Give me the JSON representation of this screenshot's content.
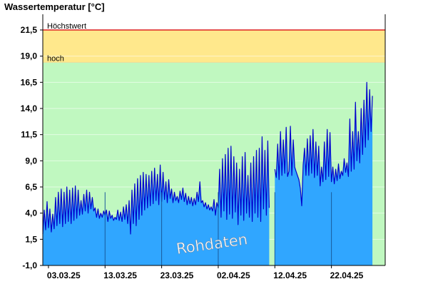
{
  "chart_data": {
    "type": "area",
    "title": "Wassertemperatur [°C]",
    "xlabel": "",
    "ylabel": "",
    "x_tick_labels": [
      "03.03.25",
      "13.03.25",
      "23.03.25",
      "02.04.25",
      "12.04.25",
      "22.04.25"
    ],
    "y_tick_labels": [
      "-1,0",
      "1,5",
      "4,0",
      "6,5",
      "9,0",
      "11,5",
      "14,0",
      "16,5",
      "19,0",
      "21,5"
    ],
    "y_ticks": [
      -1.0,
      1.5,
      4.0,
      6.5,
      9.0,
      11.5,
      14.0,
      16.5,
      19.0,
      21.5
    ],
    "ylim": [
      -1.0,
      23.0
    ],
    "x_range_days": [
      0,
      60.5
    ],
    "x_tick_days": [
      1,
      11,
      21,
      31,
      41,
      51
    ],
    "grid": true,
    "thresholds": [
      {
        "label": "Höchstwert",
        "value": 21.5,
        "color": "#dd2222"
      },
      {
        "label": "hoch",
        "value": 18.4,
        "color": "#e8e0a0"
      }
    ],
    "zones": {
      "above_max": "#ffffff",
      "between": "#ffe88c",
      "below_high": "#c0f8c0"
    },
    "colors": {
      "fill": "#30a6ff",
      "line": "#0000cc",
      "separator": "#1a5a9a",
      "axis": "#000000"
    },
    "watermark": "Rohdaten",
    "gap_days": [
      40.1,
      41.0
    ],
    "series": [
      {
        "values": [
          [
            0.0,
            2.0
          ],
          [
            0.25,
            4.3
          ],
          [
            0.5,
            2.4
          ],
          [
            0.75,
            5.1
          ],
          [
            1.0,
            2.6
          ],
          [
            1.25,
            4.4
          ],
          [
            1.5,
            2.2
          ],
          [
            1.75,
            3.9
          ],
          [
            2.0,
            2.5
          ],
          [
            2.25,
            5.5
          ],
          [
            2.5,
            2.8
          ],
          [
            2.75,
            6.0
          ],
          [
            3.0,
            3.0
          ],
          [
            3.25,
            6.3
          ],
          [
            3.5,
            2.7
          ],
          [
            3.75,
            6.0
          ],
          [
            4.0,
            3.0
          ],
          [
            4.25,
            6.5
          ],
          [
            4.5,
            3.2
          ],
          [
            4.75,
            6.2
          ],
          [
            5.0,
            3.0
          ],
          [
            5.25,
            6.4
          ],
          [
            5.5,
            3.3
          ],
          [
            5.75,
            6.6
          ],
          [
            6.0,
            3.5
          ],
          [
            6.25,
            6.2
          ],
          [
            6.5,
            3.8
          ],
          [
            6.75,
            5.2
          ],
          [
            7.0,
            3.9
          ],
          [
            7.25,
            5.8
          ],
          [
            7.5,
            4.2
          ],
          [
            7.75,
            6.2
          ],
          [
            8.0,
            4.0
          ],
          [
            8.25,
            6.0
          ],
          [
            8.5,
            4.4
          ],
          [
            8.75,
            5.5
          ],
          [
            9.0,
            4.2
          ],
          [
            9.25,
            4.5
          ],
          [
            9.5,
            3.6
          ],
          [
            9.75,
            4.4
          ],
          [
            10.0,
            3.5
          ],
          [
            10.25,
            4.0
          ],
          [
            10.5,
            3.6
          ],
          [
            10.75,
            4.2
          ],
          [
            11.0,
            3.8
          ],
          [
            11.25,
            4.3
          ],
          [
            11.5,
            3.2
          ],
          [
            11.75,
            4.2
          ],
          [
            12.0,
            3.5
          ],
          [
            12.25,
            3.8
          ],
          [
            12.5,
            3.3
          ],
          [
            12.75,
            3.6
          ],
          [
            13.0,
            3.4
          ],
          [
            13.25,
            4.3
          ],
          [
            13.5,
            3.3
          ],
          [
            13.75,
            4.1
          ],
          [
            14.0,
            3.2
          ],
          [
            14.25,
            4.6
          ],
          [
            14.5,
            3.4
          ],
          [
            14.75,
            4.8
          ],
          [
            15.0,
            3.0
          ],
          [
            15.25,
            5.2
          ],
          [
            15.5,
            2.0
          ],
          [
            15.75,
            6.2
          ],
          [
            16.0,
            3.0
          ],
          [
            16.25,
            6.8
          ],
          [
            16.5,
            2.8
          ],
          [
            16.75,
            7.3
          ],
          [
            17.0,
            3.4
          ],
          [
            17.25,
            7.6
          ],
          [
            17.5,
            3.8
          ],
          [
            17.75,
            7.9
          ],
          [
            18.0,
            4.3
          ],
          [
            18.25,
            7.7
          ],
          [
            18.5,
            4.5
          ],
          [
            18.75,
            7.6
          ],
          [
            19.0,
            4.7
          ],
          [
            19.25,
            8.0
          ],
          [
            19.5,
            4.9
          ],
          [
            19.75,
            8.3
          ],
          [
            20.0,
            5.2
          ],
          [
            20.25,
            7.7
          ],
          [
            20.5,
            4.8
          ],
          [
            20.75,
            8.6
          ],
          [
            21.0,
            5.1
          ],
          [
            21.25,
            7.9
          ],
          [
            21.5,
            5.3
          ],
          [
            21.75,
            7.0
          ],
          [
            22.0,
            5.0
          ],
          [
            22.25,
            7.2
          ],
          [
            22.5,
            5.4
          ],
          [
            22.75,
            6.3
          ],
          [
            23.0,
            5.0
          ],
          [
            23.25,
            6.0
          ],
          [
            23.5,
            5.2
          ],
          [
            23.75,
            5.6
          ],
          [
            24.0,
            5.0
          ],
          [
            24.25,
            6.1
          ],
          [
            24.5,
            5.3
          ],
          [
            24.75,
            6.4
          ],
          [
            25.0,
            5.1
          ],
          [
            25.25,
            5.9
          ],
          [
            25.5,
            4.8
          ],
          [
            25.75,
            5.6
          ],
          [
            26.0,
            4.9
          ],
          [
            26.25,
            5.5
          ],
          [
            26.5,
            4.7
          ],
          [
            26.75,
            5.4
          ],
          [
            27.0,
            4.8
          ],
          [
            27.25,
            6.0
          ],
          [
            27.5,
            5.1
          ],
          [
            27.75,
            7.0
          ],
          [
            28.0,
            5.0
          ],
          [
            28.25,
            5.2
          ],
          [
            28.5,
            4.6
          ],
          [
            28.75,
            5.0
          ],
          [
            29.0,
            4.4
          ],
          [
            29.25,
            4.8
          ],
          [
            29.5,
            4.3
          ],
          [
            29.75,
            4.6
          ],
          [
            30.0,
            4.2
          ],
          [
            30.25,
            5.3
          ],
          [
            30.5,
            3.8
          ],
          [
            30.75,
            5.0
          ],
          [
            31.0,
            4.5
          ],
          [
            31.25,
            8.2
          ],
          [
            31.5,
            3.6
          ],
          [
            31.75,
            9.2
          ],
          [
            32.0,
            4.2
          ],
          [
            32.25,
            9.6
          ],
          [
            32.5,
            3.4
          ],
          [
            32.75,
            10.2
          ],
          [
            33.0,
            3.9
          ],
          [
            33.25,
            10.4
          ],
          [
            33.5,
            3.5
          ],
          [
            33.75,
            9.4
          ],
          [
            34.0,
            4.1
          ],
          [
            34.25,
            8.8
          ],
          [
            34.5,
            2.9
          ],
          [
            34.75,
            8.2
          ],
          [
            35.0,
            3.8
          ],
          [
            35.25,
            9.4
          ],
          [
            35.5,
            3.3
          ],
          [
            35.75,
            9.8
          ],
          [
            36.0,
            4.0
          ],
          [
            36.25,
            7.6
          ],
          [
            36.5,
            3.6
          ],
          [
            36.75,
            8.8
          ],
          [
            37.0,
            3.2
          ],
          [
            37.25,
            9.4
          ],
          [
            37.5,
            4.0
          ],
          [
            37.75,
            10.0
          ],
          [
            38.0,
            3.6
          ],
          [
            38.25,
            10.2
          ],
          [
            38.5,
            3.2
          ],
          [
            38.75,
            11.3
          ],
          [
            39.0,
            4.4
          ],
          [
            39.25,
            10.0
          ],
          [
            39.5,
            3.8
          ],
          [
            39.75,
            10.9
          ],
          [
            40.0,
            4.5
          ],
          [
            41.0,
            null
          ],
          [
            41.0,
            8.2
          ],
          [
            41.25,
            7.4
          ],
          [
            41.5,
            10.6
          ],
          [
            41.75,
            7.2
          ],
          [
            42.0,
            11.8
          ],
          [
            42.25,
            7.6
          ],
          [
            42.5,
            11.0
          ],
          [
            42.75,
            7.8
          ],
          [
            43.0,
            12.2
          ],
          [
            43.25,
            7.5
          ],
          [
            43.5,
            8.0
          ],
          [
            43.75,
            12.3
          ],
          [
            44.0,
            7.6
          ],
          [
            44.25,
            11.0
          ],
          [
            44.5,
            8.4
          ],
          [
            44.75,
            8.0
          ],
          [
            45.0,
            7.6
          ],
          [
            45.25,
            7.2
          ],
          [
            45.5,
            6.4
          ],
          [
            45.75,
            4.7
          ],
          [
            46.0,
            8.6
          ],
          [
            46.25,
            10.2
          ],
          [
            46.5,
            7.6
          ],
          [
            46.75,
            11.1
          ],
          [
            47.0,
            7.6
          ],
          [
            47.25,
            11.4
          ],
          [
            47.5,
            7.8
          ],
          [
            47.75,
            12.0
          ],
          [
            48.0,
            7.4
          ],
          [
            48.25,
            10.8
          ],
          [
            48.5,
            7.6
          ],
          [
            48.75,
            10.4
          ],
          [
            49.0,
            6.6
          ],
          [
            49.25,
            8.4
          ],
          [
            49.5,
            7.0
          ],
          [
            49.75,
            10.8
          ],
          [
            50.0,
            7.2
          ],
          [
            50.25,
            12.0
          ],
          [
            50.5,
            7.5
          ],
          [
            50.75,
            11.7
          ],
          [
            51.0,
            7.0
          ],
          [
            51.25,
            8.4
          ],
          [
            51.5,
            6.8
          ],
          [
            51.75,
            8.2
          ],
          [
            52.0,
            7.1
          ],
          [
            52.25,
            8.7
          ],
          [
            52.5,
            7.3
          ],
          [
            52.75,
            8.0
          ],
          [
            53.0,
            7.6
          ],
          [
            53.25,
            9.2
          ],
          [
            53.5,
            7.9
          ],
          [
            53.75,
            8.8
          ],
          [
            54.0,
            7.5
          ],
          [
            54.25,
            13.0
          ],
          [
            54.5,
            8.0
          ],
          [
            54.75,
            11.8
          ],
          [
            55.0,
            8.2
          ],
          [
            55.25,
            14.6
          ],
          [
            55.5,
            9.0
          ],
          [
            55.75,
            11.8
          ],
          [
            56.0,
            8.8
          ],
          [
            56.25,
            14.0
          ],
          [
            56.5,
            9.6
          ],
          [
            56.75,
            14.8
          ],
          [
            57.0,
            10.3
          ],
          [
            57.25,
            16.5
          ],
          [
            57.5,
            11.0
          ],
          [
            57.75,
            15.8
          ],
          [
            58.0,
            11.8
          ],
          [
            58.25,
            15.2
          ]
        ]
      }
    ]
  }
}
